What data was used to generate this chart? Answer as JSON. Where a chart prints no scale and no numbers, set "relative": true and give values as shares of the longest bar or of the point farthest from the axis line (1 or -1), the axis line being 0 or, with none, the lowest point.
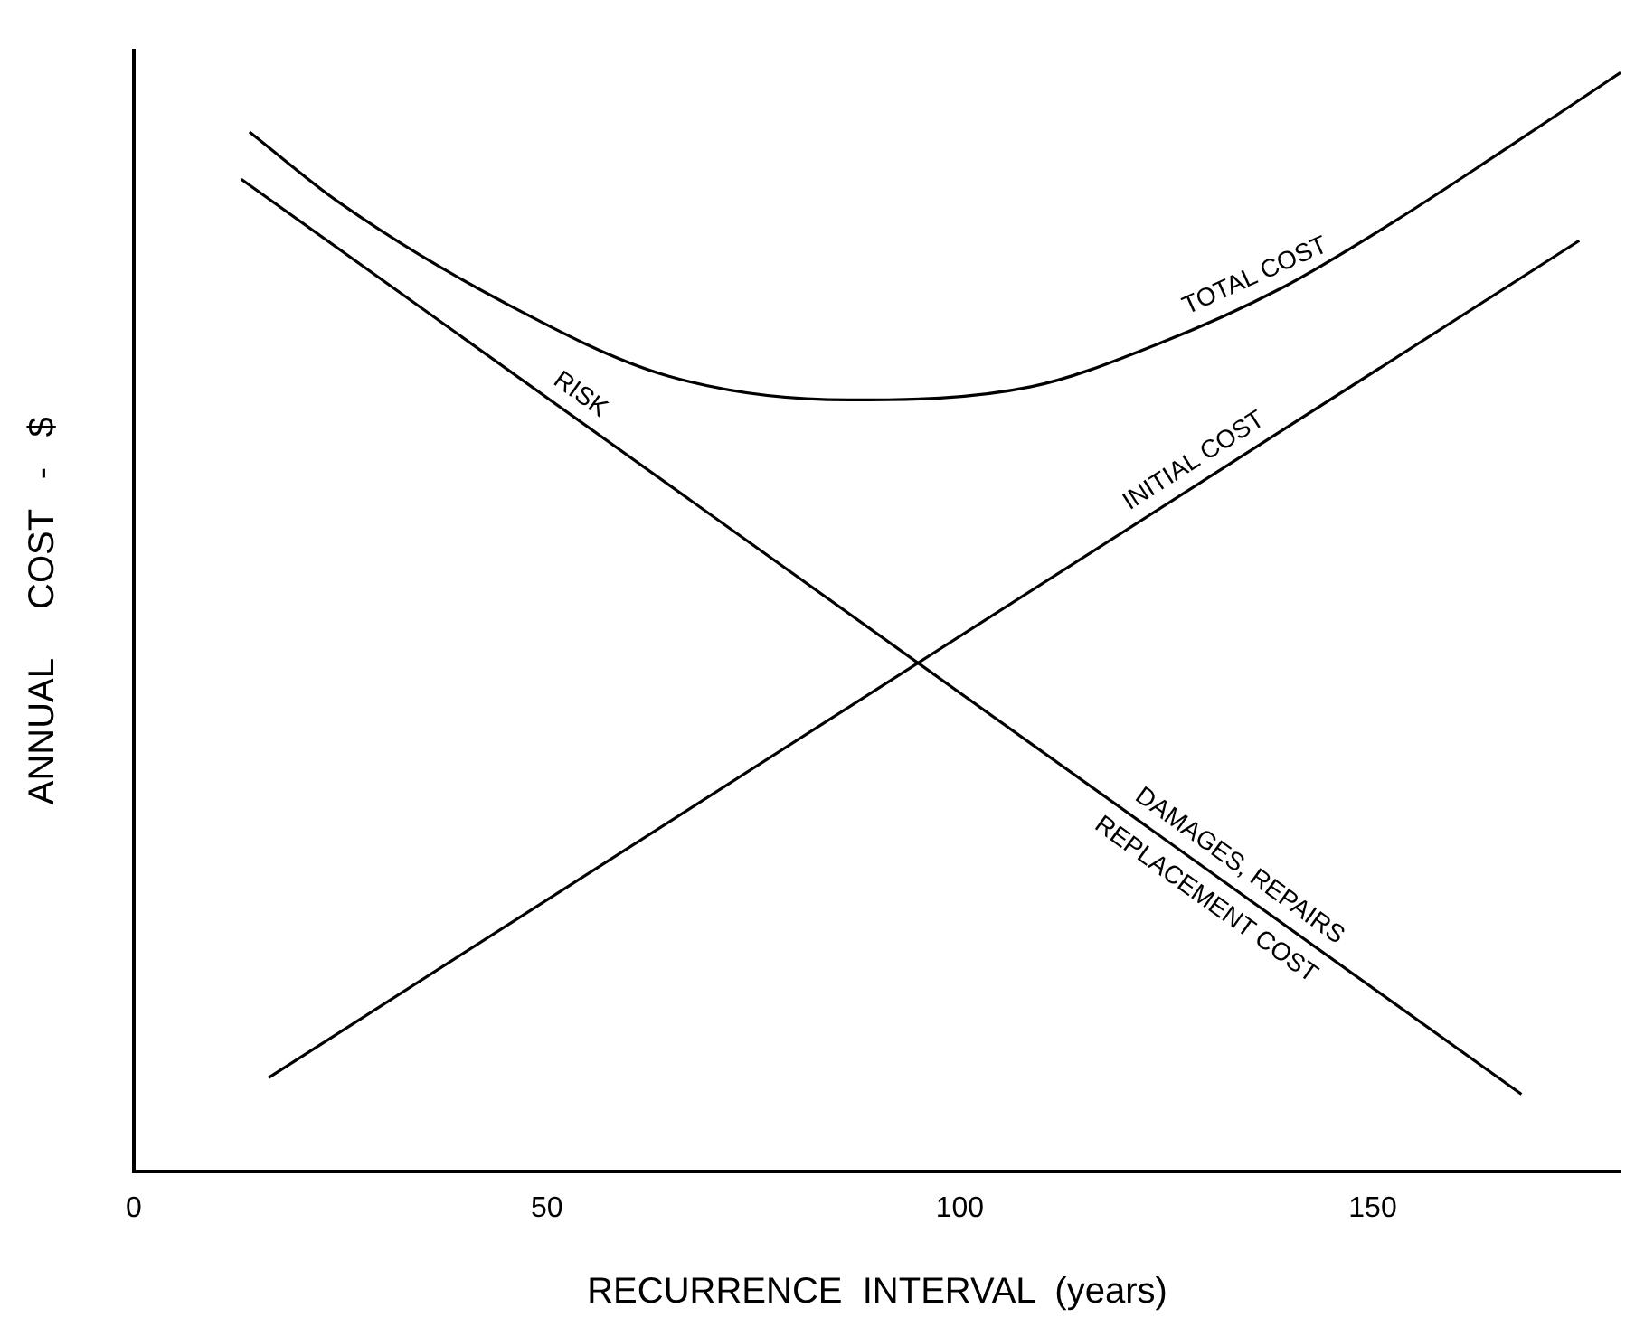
{
  "chart_data": {
    "type": "line",
    "relative": true,
    "xlabel": "RECURRENCE  INTERVAL  (years)",
    "ylabel": "ANNUAL     COST   -   $",
    "xlim": [
      0,
      180
    ],
    "xticks": [
      0,
      50,
      100,
      150
    ],
    "grid": false,
    "legend": false,
    "marker": "none",
    "line_style": "solid",
    "series": [
      {
        "name": "TOTAL COST",
        "color": "#000000",
        "x": [
          14,
          25,
          45,
          64.6,
          86.6,
          108.6,
          124,
          139,
          152.5,
          165,
          180
        ],
        "values": [
          0.946,
          0.881,
          0.79,
          0.724,
          0.702,
          0.714,
          0.753,
          0.804,
          0.864,
          0.925,
          1.0
        ]
      },
      {
        "name": "INITIAL COST",
        "color": "#000000",
        "x": [
          16.3,
          175
        ],
        "values": [
          0.085,
          0.847
        ]
      },
      {
        "name": "RISK",
        "color": "#000000",
        "x": [
          13,
          168
        ],
        "values": [
          0.903,
          0.07
        ]
      }
    ],
    "annotations": [
      "DAMAGES, REPAIRS",
      "REPLACEMENT COST"
    ]
  }
}
